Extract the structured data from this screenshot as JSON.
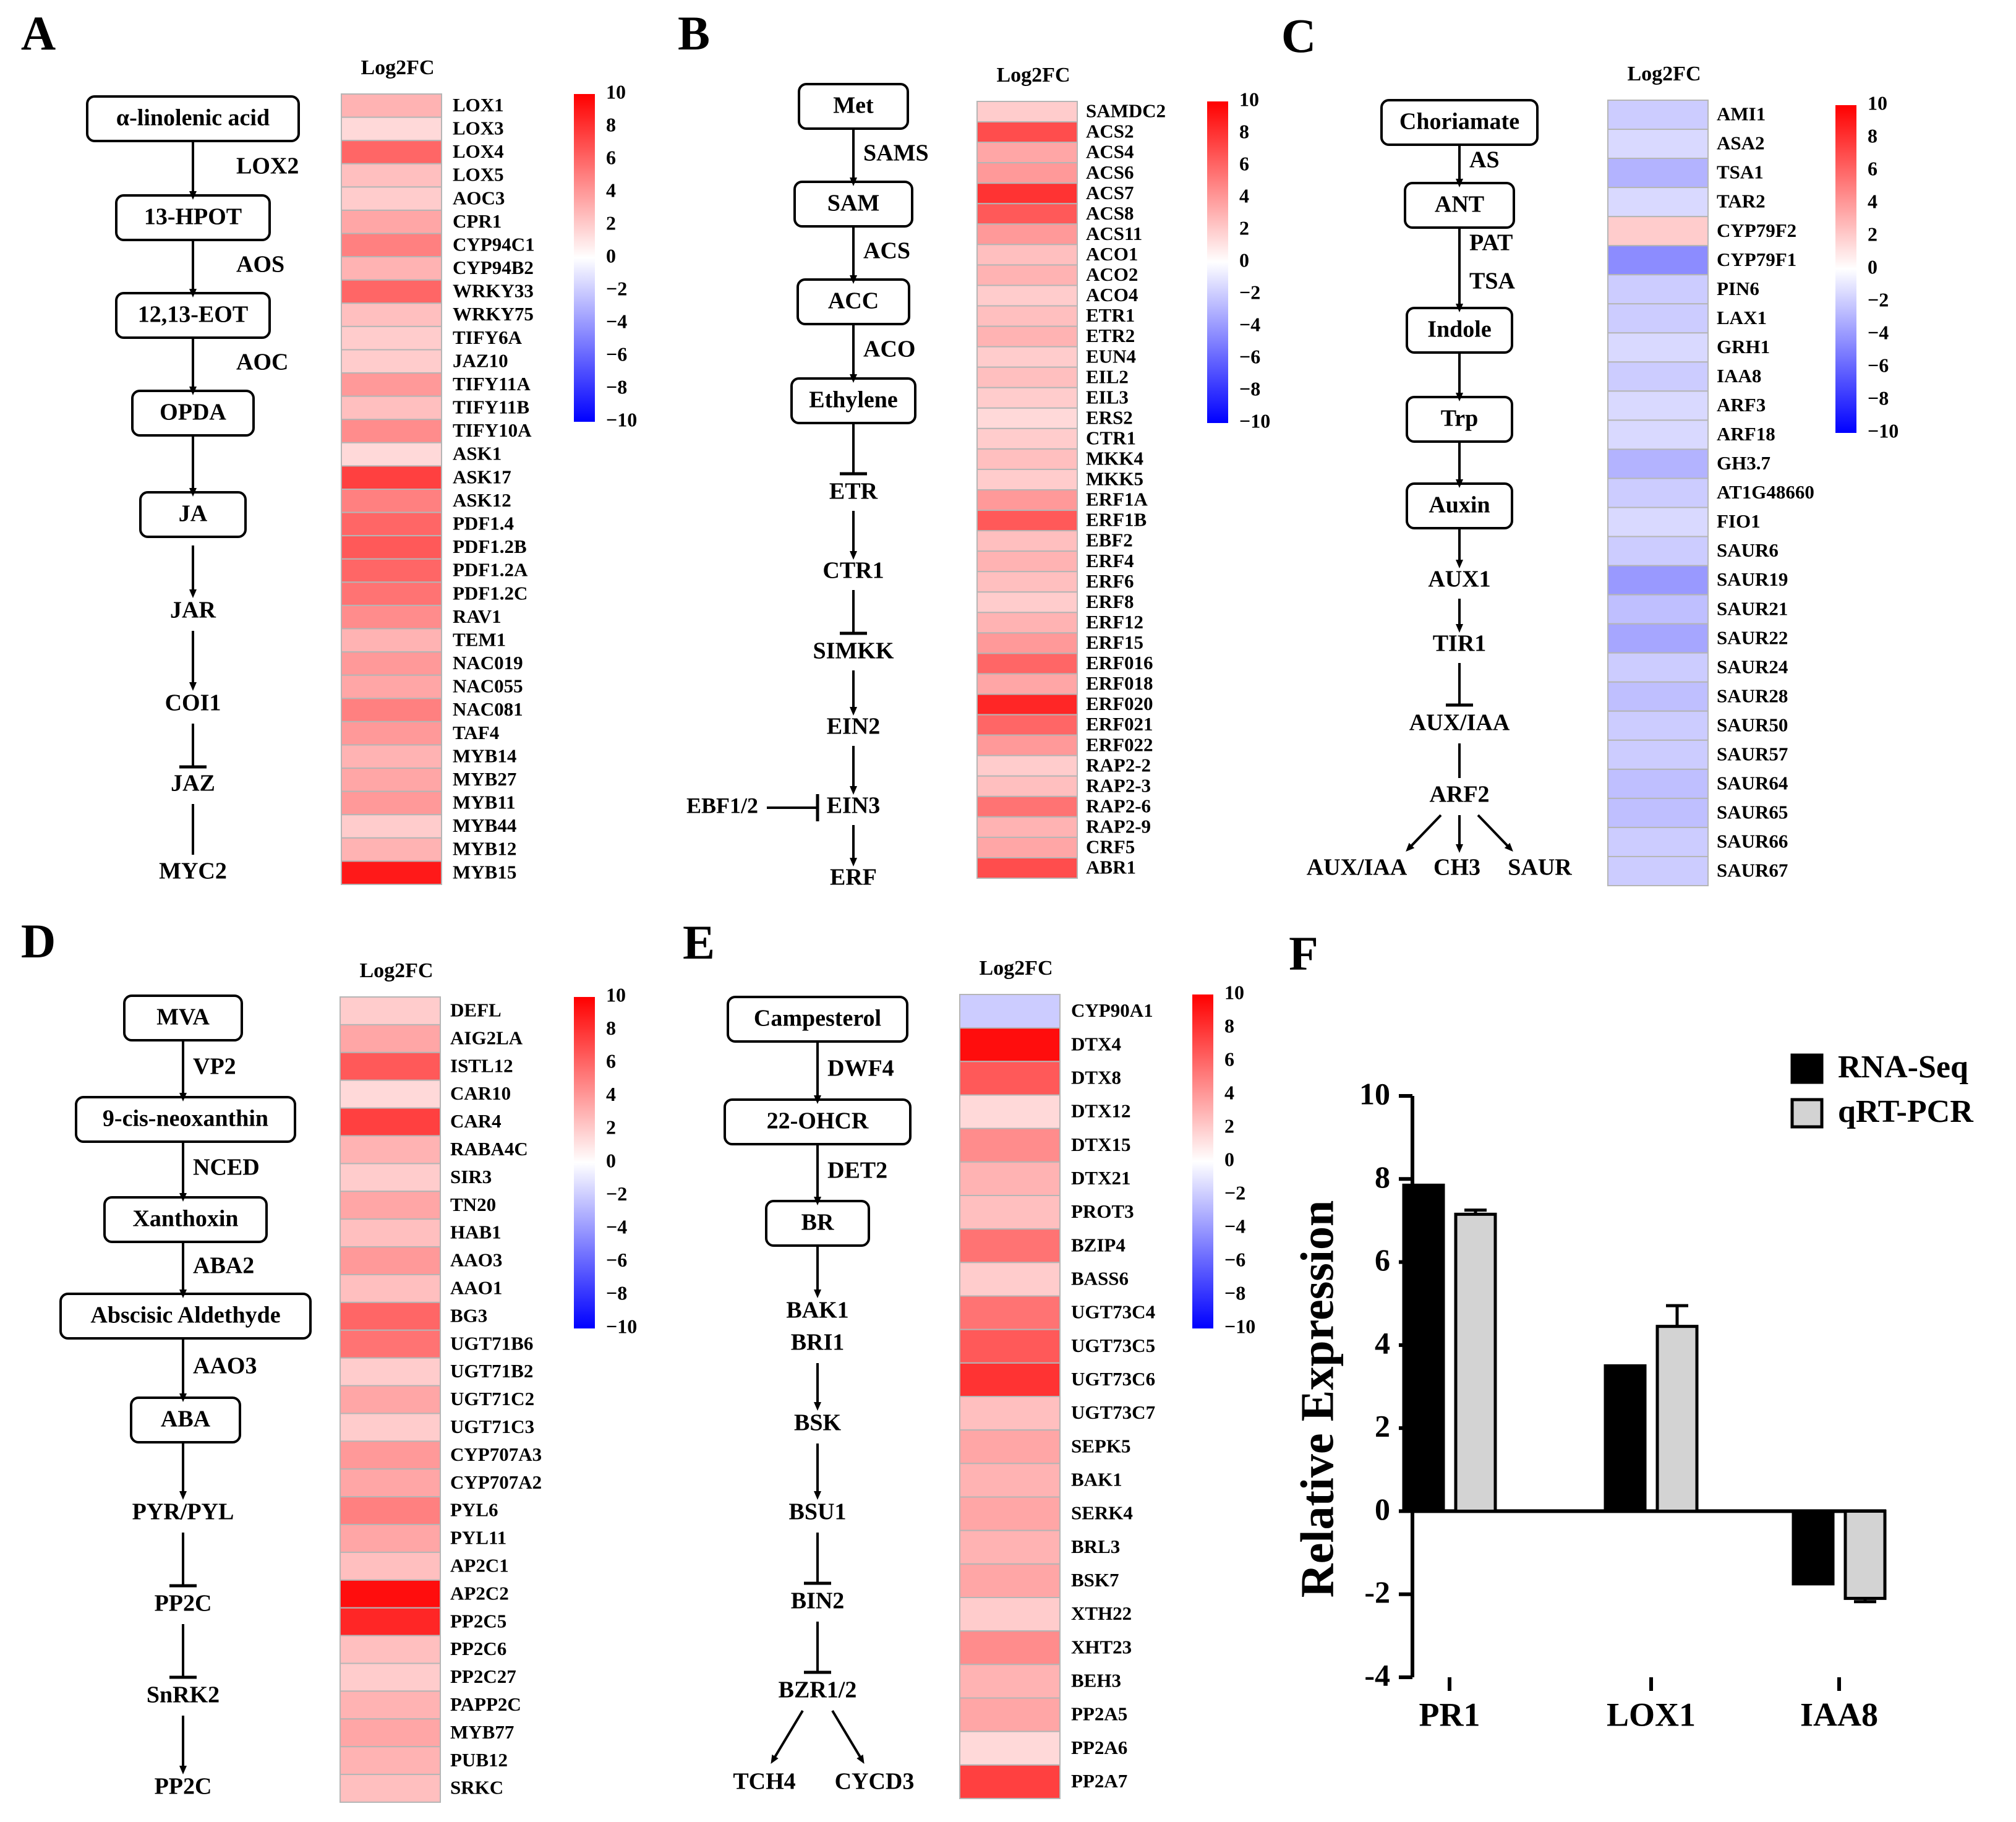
{
  "colors": {
    "pos": "#ff0000",
    "neg": "#0000ff",
    "zero": "#ffffff",
    "rnaseq": "#000000",
    "qpcr": "#d3d3d3"
  },
  "heatmap_header": "Log2FC",
  "colorbar": {
    "min": -10,
    "max": 10,
    "ticks": [
      "10",
      "8",
      "6",
      "4",
      "2",
      "0",
      "−2",
      "−4",
      "−6",
      "−8",
      "−10"
    ]
  },
  "panels": [
    {
      "letter": "A",
      "pathway": {
        "boxes": [
          "α-linolenic acid",
          "13-HPOT",
          "12,13-EOT",
          "OPDA",
          "JA"
        ],
        "enzymes": [
          "LOX2",
          "AOS",
          "AOC"
        ],
        "signals": [
          "JAR",
          "COI1",
          "JAZ",
          "MYC2"
        ]
      },
      "genes": [
        {
          "name": "LOX1",
          "value": 3.0
        },
        {
          "name": "LOX3",
          "value": 1.5
        },
        {
          "name": "LOX4",
          "value": 6.0
        },
        {
          "name": "LOX5",
          "value": 2.5
        },
        {
          "name": "AOC3",
          "value": 2.0
        },
        {
          "name": "CPR1",
          "value": 3.5
        },
        {
          "name": "CYP94C1",
          "value": 5.0
        },
        {
          "name": "CYP94B2",
          "value": 3.0
        },
        {
          "name": "WRKY33",
          "value": 6.0
        },
        {
          "name": "WRKY75",
          "value": 2.5
        },
        {
          "name": "TIFY6A",
          "value": 2.0
        },
        {
          "name": "JAZ10",
          "value": 2.0
        },
        {
          "name": "TIFY11A",
          "value": 4.0
        },
        {
          "name": "TIFY11B",
          "value": 2.5
        },
        {
          "name": "TIFY10A",
          "value": 4.5
        },
        {
          "name": "ASK1",
          "value": 1.5
        },
        {
          "name": "ASK17",
          "value": 7.5
        },
        {
          "name": "ASK12",
          "value": 5.0
        },
        {
          "name": "PDF1.4",
          "value": 6.0
        },
        {
          "name": "PDF1.2B",
          "value": 6.5
        },
        {
          "name": "PDF1.2A",
          "value": 6.0
        },
        {
          "name": "PDF1.2C",
          "value": 5.5
        },
        {
          "name": "RAV1",
          "value": 4.5
        },
        {
          "name": "TEM1",
          "value": 3.0
        },
        {
          "name": "NAC019",
          "value": 4.0
        },
        {
          "name": "NAC055",
          "value": 3.5
        },
        {
          "name": "NAC081",
          "value": 5.0
        },
        {
          "name": "TAF4",
          "value": 4.0
        },
        {
          "name": "MYB14",
          "value": 3.0
        },
        {
          "name": "MYB27",
          "value": 3.5
        },
        {
          "name": "MYB11",
          "value": 4.0
        },
        {
          "name": "MYB44",
          "value": 2.0
        },
        {
          "name": "MYB12",
          "value": 3.0
        },
        {
          "name": "MYB15",
          "value": 9.0
        }
      ]
    },
    {
      "letter": "B",
      "pathway": {
        "boxes": [
          "Met",
          "SAM",
          "ACC",
          "Ethylene"
        ],
        "enzymes": [
          "SAMS",
          "ACS",
          "ACO"
        ],
        "signals": [
          "ETR",
          "CTR1",
          "SIMKK",
          "EIN2",
          "EIN3",
          "ERF"
        ],
        "side": "EBF1/2"
      },
      "genes": [
        {
          "name": "SAMDC2",
          "value": 2.0
        },
        {
          "name": "ACS2",
          "value": 7.0
        },
        {
          "name": "ACS4",
          "value": 3.5
        },
        {
          "name": "ACS6",
          "value": 4.0
        },
        {
          "name": "ACS7",
          "value": 8.0
        },
        {
          "name": "ACS8",
          "value": 6.5
        },
        {
          "name": "ACS11",
          "value": 4.0
        },
        {
          "name": "ACO1",
          "value": 2.5
        },
        {
          "name": "ACO2",
          "value": 3.0
        },
        {
          "name": "ACO4",
          "value": 2.0
        },
        {
          "name": "ETR1",
          "value": 2.5
        },
        {
          "name": "ETR2",
          "value": 3.0
        },
        {
          "name": "EUN4",
          "value": 2.0
        },
        {
          "name": "EIL2",
          "value": 2.5
        },
        {
          "name": "EIL3",
          "value": 2.0
        },
        {
          "name": "ERS2",
          "value": 1.5
        },
        {
          "name": "CTR1",
          "value": 2.0
        },
        {
          "name": "MKK4",
          "value": 2.5
        },
        {
          "name": "MKK5",
          "value": 2.0
        },
        {
          "name": "ERF1A",
          "value": 4.0
        },
        {
          "name": "ERF1B",
          "value": 6.5
        },
        {
          "name": "EBF2",
          "value": 2.5
        },
        {
          "name": "ERF4",
          "value": 3.0
        },
        {
          "name": "ERF6",
          "value": 2.5
        },
        {
          "name": "ERF8",
          "value": 2.0
        },
        {
          "name": "ERF12",
          "value": 3.0
        },
        {
          "name": "ERF15",
          "value": 4.0
        },
        {
          "name": "ERF016",
          "value": 6.0
        },
        {
          "name": "ERF018",
          "value": 3.5
        },
        {
          "name": "ERF020",
          "value": 8.5
        },
        {
          "name": "ERF021",
          "value": 6.0
        },
        {
          "name": "ERF022",
          "value": 4.0
        },
        {
          "name": "RAP2-2",
          "value": 2.0
        },
        {
          "name": "RAP2-3",
          "value": 2.5
        },
        {
          "name": "RAP2-6",
          "value": 5.5
        },
        {
          "name": "RAP2-9",
          "value": 3.0
        },
        {
          "name": "CRF5",
          "value": 3.5
        },
        {
          "name": "ABR1",
          "value": 7.0
        }
      ]
    },
    {
      "letter": "C",
      "pathway": {
        "boxes": [
          "Choriamate",
          "ANT",
          "Indole",
          "Trp",
          "Auxin"
        ],
        "enzymes": [
          "AS",
          "PAT",
          "TSA"
        ],
        "signals": [
          "AUX1",
          "TIR1",
          "AUX/IAA",
          "ARF2",
          "AUX/IAA",
          "CH3",
          "SAUR"
        ]
      },
      "genes": [
        {
          "name": "AMI1",
          "value": -2.0
        },
        {
          "name": "ASA2",
          "value": -1.5
        },
        {
          "name": "TSA1",
          "value": -3.0
        },
        {
          "name": "TAR2",
          "value": -1.5
        },
        {
          "name": "CYP79F2",
          "value": 2.0
        },
        {
          "name": "CYP79F1",
          "value": -4.5
        },
        {
          "name": "PIN6",
          "value": -2.0
        },
        {
          "name": "LAX1",
          "value": -2.0
        },
        {
          "name": "GRH1",
          "value": -1.5
        },
        {
          "name": "IAA8",
          "value": -2.0
        },
        {
          "name": "ARF3",
          "value": -1.5
        },
        {
          "name": "ARF18",
          "value": -1.5
        },
        {
          "name": "GH3.7",
          "value": -3.0
        },
        {
          "name": "AT1G48660",
          "value": -2.0
        },
        {
          "name": "FIO1",
          "value": -1.5
        },
        {
          "name": "SAUR6",
          "value": -2.0
        },
        {
          "name": "SAUR19",
          "value": -4.0
        },
        {
          "name": "SAUR21",
          "value": -2.5
        },
        {
          "name": "SAUR22",
          "value": -3.5
        },
        {
          "name": "SAUR24",
          "value": -2.0
        },
        {
          "name": "SAUR28",
          "value": -2.5
        },
        {
          "name": "SAUR50",
          "value": -2.0
        },
        {
          "name": "SAUR57",
          "value": -2.0
        },
        {
          "name": "SAUR64",
          "value": -2.5
        },
        {
          "name": "SAUR65",
          "value": -2.5
        },
        {
          "name": "SAUR66",
          "value": -2.0
        },
        {
          "name": "SAUR67",
          "value": -2.0
        }
      ]
    },
    {
      "letter": "D",
      "pathway": {
        "boxes": [
          "MVA",
          "9-cis-neoxanthin",
          "Xanthoxin",
          "Abscisic Aldethyde",
          "ABA"
        ],
        "enzymes": [
          "VP2",
          "NCED",
          "ABA2",
          "AAO3"
        ],
        "signals": [
          "PYR/PYL",
          "PP2C",
          "SnRK2",
          "PP2C"
        ]
      },
      "genes": [
        {
          "name": "DEFL",
          "value": 2.0
        },
        {
          "name": "AIG2LA",
          "value": 3.5
        },
        {
          "name": "ISTL12",
          "value": 6.5
        },
        {
          "name": "CAR10",
          "value": 1.5
        },
        {
          "name": "CAR4",
          "value": 7.5
        },
        {
          "name": "RABA4C",
          "value": 3.0
        },
        {
          "name": "SIR3",
          "value": 2.0
        },
        {
          "name": "TN20",
          "value": 3.5
        },
        {
          "name": "HAB1",
          "value": 2.5
        },
        {
          "name": "AAO3",
          "value": 4.0
        },
        {
          "name": "AAO1",
          "value": 2.5
        },
        {
          "name": "BG3",
          "value": 6.0
        },
        {
          "name": "UGT71B6",
          "value": 5.5
        },
        {
          "name": "UGT71B2",
          "value": 2.0
        },
        {
          "name": "UGT71C2",
          "value": 3.5
        },
        {
          "name": "UGT71C3",
          "value": 2.0
        },
        {
          "name": "CYP707A3",
          "value": 4.0
        },
        {
          "name": "CYP707A2",
          "value": 3.5
        },
        {
          "name": "PYL6",
          "value": 5.0
        },
        {
          "name": "PYL11",
          "value": 3.5
        },
        {
          "name": "AP2C1",
          "value": 2.5
        },
        {
          "name": "AP2C2",
          "value": 9.5
        },
        {
          "name": "PP2C5",
          "value": 8.5
        },
        {
          "name": "PP2C6",
          "value": 2.5
        },
        {
          "name": "PP2C27",
          "value": 2.0
        },
        {
          "name": "PAPP2C",
          "value": 3.0
        },
        {
          "name": "MYB77",
          "value": 3.5
        },
        {
          "name": "PUB12",
          "value": 3.0
        },
        {
          "name": "SRKC",
          "value": 2.5
        }
      ]
    },
    {
      "letter": "E",
      "pathway": {
        "boxes": [
          "Campesterol",
          "22-OHCR",
          "BR"
        ],
        "enzymes": [
          "DWF4",
          "DET2"
        ],
        "signals": [
          "BAK1",
          "BRI1",
          "BSK",
          "BSU1",
          "BIN2",
          "BZR1/2",
          "TCH4",
          "CYCD3"
        ]
      },
      "genes": [
        {
          "name": "CYP90A1",
          "value": -2.0
        },
        {
          "name": "DTX4",
          "value": 9.5
        },
        {
          "name": "DTX8",
          "value": 6.5
        },
        {
          "name": "DTX12",
          "value": 1.5
        },
        {
          "name": "DTX15",
          "value": 4.5
        },
        {
          "name": "DTX21",
          "value": 3.0
        },
        {
          "name": "PROT3",
          "value": 2.5
        },
        {
          "name": "BZIP4",
          "value": 5.5
        },
        {
          "name": "BASS6",
          "value": 2.0
        },
        {
          "name": "UGT73C4",
          "value": 5.5
        },
        {
          "name": "UGT73C5",
          "value": 6.5
        },
        {
          "name": "UGT73C6",
          "value": 8.0
        },
        {
          "name": "UGT73C7",
          "value": 2.5
        },
        {
          "name": "SEPK5",
          "value": 3.5
        },
        {
          "name": "BAK1",
          "value": 3.0
        },
        {
          "name": "SERK4",
          "value": 3.5
        },
        {
          "name": "BRL3",
          "value": 3.0
        },
        {
          "name": "BSK7",
          "value": 3.5
        },
        {
          "name": "XTH22",
          "value": 2.0
        },
        {
          "name": "XHT23",
          "value": 4.5
        },
        {
          "name": "BEH3",
          "value": 3.0
        },
        {
          "name": "PP2A5",
          "value": 3.5
        },
        {
          "name": "PP2A6",
          "value": 1.5
        },
        {
          "name": "PP2A7",
          "value": 7.5
        }
      ]
    }
  ],
  "panel_f": {
    "letter": "F",
    "chart_data": {
      "type": "bar",
      "categories": [
        "PR1",
        "LOX1",
        "IAA8"
      ],
      "series": [
        {
          "name": "RNA-Seq",
          "values": [
            7.85,
            3.5,
            -1.75
          ]
        },
        {
          "name": "qRT-PCR",
          "values": [
            7.15,
            4.45,
            -2.1
          ],
          "errors": [
            0.1,
            0.5,
            0.08
          ]
        }
      ],
      "xlabel": "",
      "ylabel": "Relative Expression",
      "ylim": [
        -4,
        10
      ],
      "yticks": [
        -4,
        -2,
        0,
        2,
        4,
        6,
        8,
        10
      ],
      "legend": "top-right",
      "grid": false
    }
  }
}
